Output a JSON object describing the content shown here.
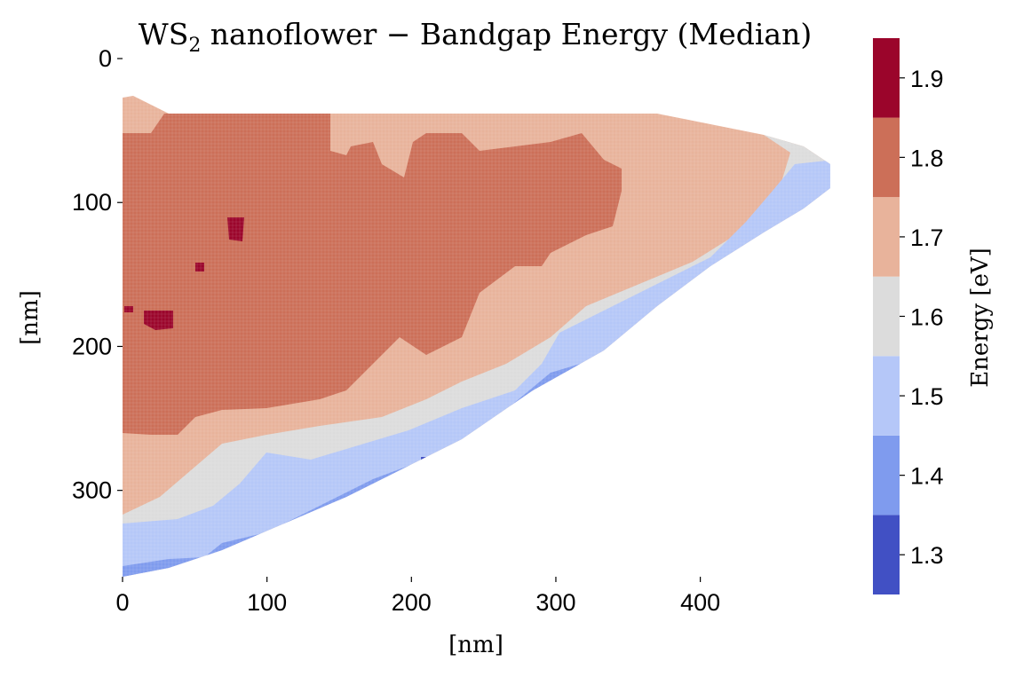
{
  "chart_data": {
    "type": "heatmap",
    "title_main": "WS",
    "title_sub": "2",
    "title_rest": " nanoflower − Bandgap Energy (Median)",
    "xlabel": "[nm]",
    "ylabel": "[nm]",
    "xlim": [
      0,
      490
    ],
    "ylim": [
      360,
      0
    ],
    "x_ticks": [
      0,
      100,
      200,
      300,
      400
    ],
    "y_ticks": [
      0,
      100,
      200,
      300
    ],
    "colorbar": {
      "label": "Energy [eV]",
      "range": [
        1.25,
        1.95
      ],
      "ticks": [
        1.3,
        1.4,
        1.5,
        1.6,
        1.7,
        1.8,
        1.9
      ],
      "levels": [
        {
          "value": 1.3,
          "color": "#4150c4"
        },
        {
          "value": 1.4,
          "color": "#7f9bee"
        },
        {
          "value": 1.5,
          "color": "#b5c7f8"
        },
        {
          "value": 1.6,
          "color": "#dcdcdc"
        },
        {
          "value": 1.7,
          "color": "#e8b39b"
        },
        {
          "value": 1.8,
          "color": "#cc6f58"
        },
        {
          "value": 1.9,
          "color": "#9b052b"
        }
      ]
    },
    "regions": [
      {
        "value": 1.7,
        "shape": "outer flake (upper-left triangle between top edge y≈40 nm, left edge and diagonal lower-right boundary)"
      },
      {
        "value": 1.8,
        "shape": "large central-left domain, x 0–340 nm, y 40–290 nm"
      },
      {
        "value": 1.9,
        "shape": "small spots near (25,180), (80,115), (55,150) nm"
      },
      {
        "value": 1.6,
        "shape": "band along diagonal edge from (0,320) to (480,60) nm"
      },
      {
        "value": 1.5,
        "shape": "band along lower diagonal edge from (0,340) to (430,120) nm"
      },
      {
        "value": 1.4,
        "shape": "scattered pixels near lower edge"
      },
      {
        "value": 1.3,
        "shape": "isolated pixels near (210,280), (320,215) nm"
      }
    ]
  }
}
